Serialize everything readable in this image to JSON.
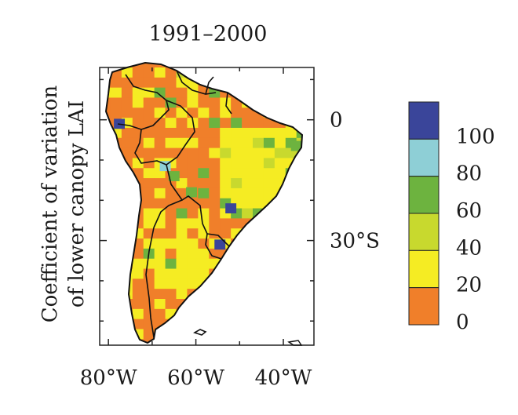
{
  "title": "1991–2000",
  "ylabel_line1": "Coefficient of variation",
  "ylabel_line2": "of lower canopy LAI",
  "lon_ticks": [
    {
      "label": "80°W",
      "lon": -80
    },
    {
      "label": "60°W",
      "lon": -60
    },
    {
      "label": "40°W",
      "lon": -40
    }
  ],
  "lat_ticks": [
    {
      "label": "0",
      "lat": 0
    },
    {
      "label": "30°S",
      "lat": -30
    }
  ],
  "extent": {
    "lon_min": -82,
    "lon_max": -33,
    "lat_min": -56,
    "lat_max": 13
  },
  "colorbar": {
    "bins": [
      {
        "from": 0,
        "to": 20,
        "color": "#f07f2a"
      },
      {
        "from": 20,
        "to": 40,
        "color": "#f5ec23"
      },
      {
        "from": 40,
        "to": 60,
        "color": "#c8d92e"
      },
      {
        "from": 60,
        "to": 80,
        "color": "#6db33f"
      },
      {
        "from": 80,
        "to": 100,
        "color": "#8ecfd6"
      },
      {
        "from": 100,
        "to": 120,
        "color": "#3a459a"
      }
    ],
    "labels": [
      "0",
      "20",
      "40",
      "60",
      "80",
      "100"
    ]
  }
}
